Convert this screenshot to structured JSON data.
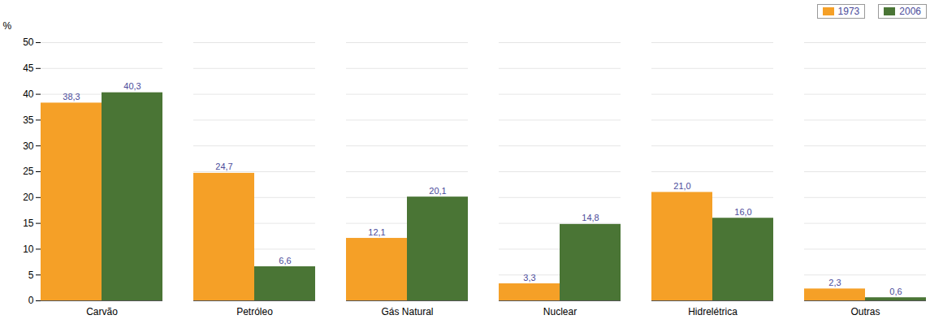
{
  "chart_data": {
    "type": "bar",
    "categories": [
      "Carvão",
      "Petróleo",
      "Gás Natural",
      "Nuclear",
      "Hidrelétrica",
      "Outras"
    ],
    "series": [
      {
        "name": "1973",
        "color": "#F5A027",
        "values": [
          38.3,
          24.7,
          12.1,
          3.3,
          21.0,
          2.3
        ],
        "value_labels": [
          "38,3",
          "24,7",
          "12,1",
          "3,3",
          "21,0",
          "2,3"
        ]
      },
      {
        "name": "2006",
        "color": "#4A7535",
        "values": [
          40.3,
          6.6,
          20.1,
          14.8,
          16.0,
          0.6
        ],
        "value_labels": [
          "40,3",
          "6,6",
          "20,1",
          "14,8",
          "16,0",
          "0,6"
        ]
      }
    ],
    "ylabel": "%",
    "ylim": [
      0,
      50
    ],
    "yticks": [
      0,
      5,
      10,
      15,
      20,
      25,
      30,
      35,
      40,
      45,
      50
    ],
    "grid": true,
    "legend": "upper right",
    "data_labels": true
  }
}
